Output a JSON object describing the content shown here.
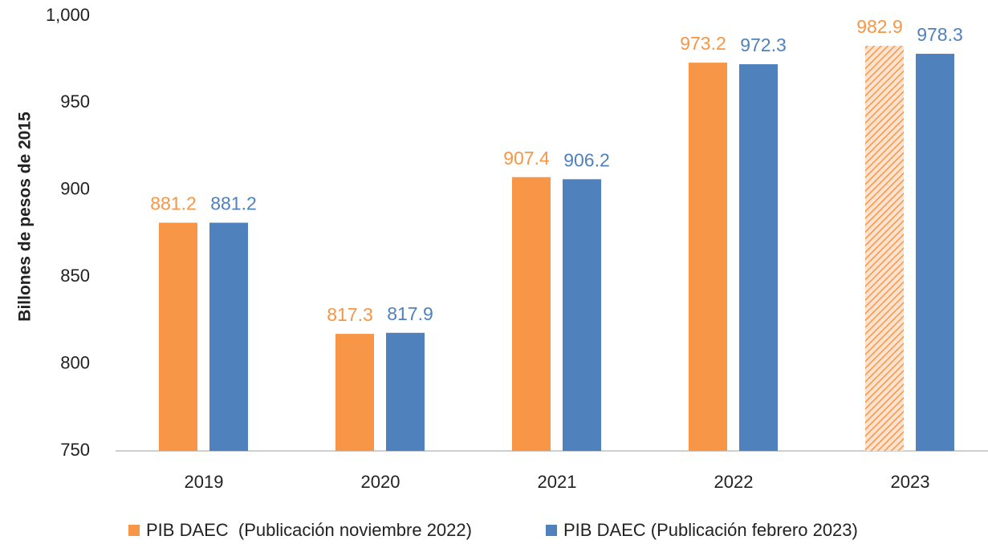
{
  "chart_data": {
    "type": "bar",
    "y_axis_label": "Billones de pesos de 2015",
    "categories": [
      "2019",
      "2020",
      "2021",
      "2022",
      "2023"
    ],
    "series": [
      {
        "name": "PIB DAEC  (Publicación noviembre 2022)",
        "color": "#f79646",
        "values": [
          881.2,
          817.3,
          907.4,
          973.2,
          982.9
        ],
        "hatched": [
          false,
          false,
          false,
          false,
          true
        ]
      },
      {
        "name": "PIB DAEC (Publicación febrero 2023)",
        "color": "#4f81bd",
        "values": [
          881.2,
          817.9,
          906.2,
          972.3,
          978.3
        ]
      }
    ],
    "ylim": [
      750,
      1000
    ],
    "yticks": [
      750,
      800,
      850,
      900,
      950,
      {
        "value": 1000,
        "label": "1,000"
      }
    ],
    "grid": false,
    "legend": "bottom"
  }
}
